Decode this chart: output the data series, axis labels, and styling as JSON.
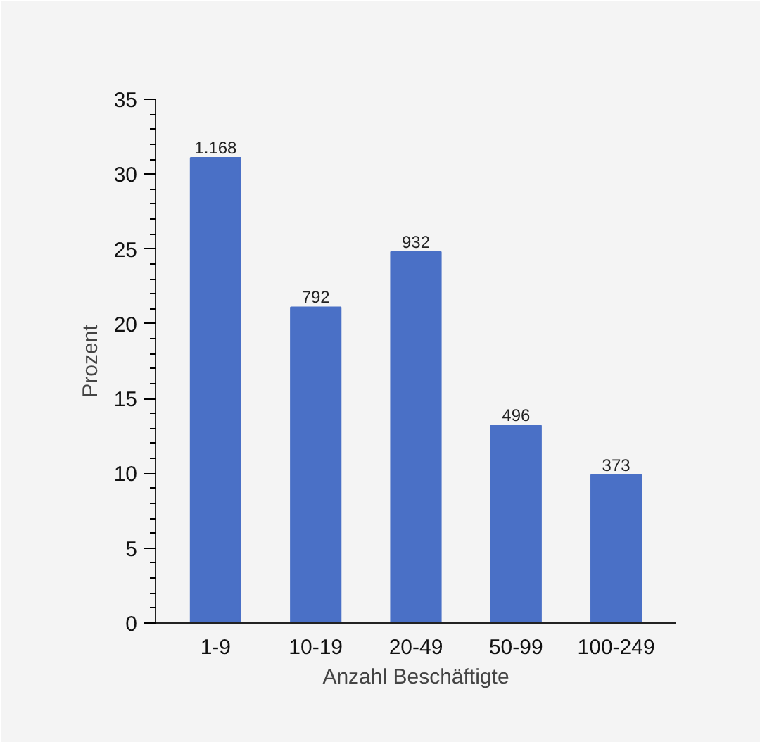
{
  "chart_data": {
    "type": "bar",
    "xlabel": "Anzahl Beschäftigte",
    "ylabel": "Prozent",
    "categories": [
      "1-9",
      "10-19",
      "20-49",
      "50-99",
      "100-249"
    ],
    "values": [
      31.1,
      21.1,
      24.8,
      13.2,
      9.9
    ],
    "annotations": [
      {
        "text": "1.168",
        "x": "1-9",
        "y": 31.1
      },
      {
        "text": "792",
        "x": "10-19",
        "y": 21.1
      },
      {
        "text": "932",
        "x": "20-49",
        "y": 24.8
      },
      {
        "text": "496",
        "x": "50-99",
        "y": 13.2
      },
      {
        "text": "373",
        "x": "100-249",
        "y": 9.9
      }
    ],
    "color": "#4a70c6",
    "ylim": [
      0,
      35
    ],
    "yticks": [
      0,
      5,
      10,
      15,
      20,
      25,
      30,
      35
    ],
    "grid": false
  }
}
